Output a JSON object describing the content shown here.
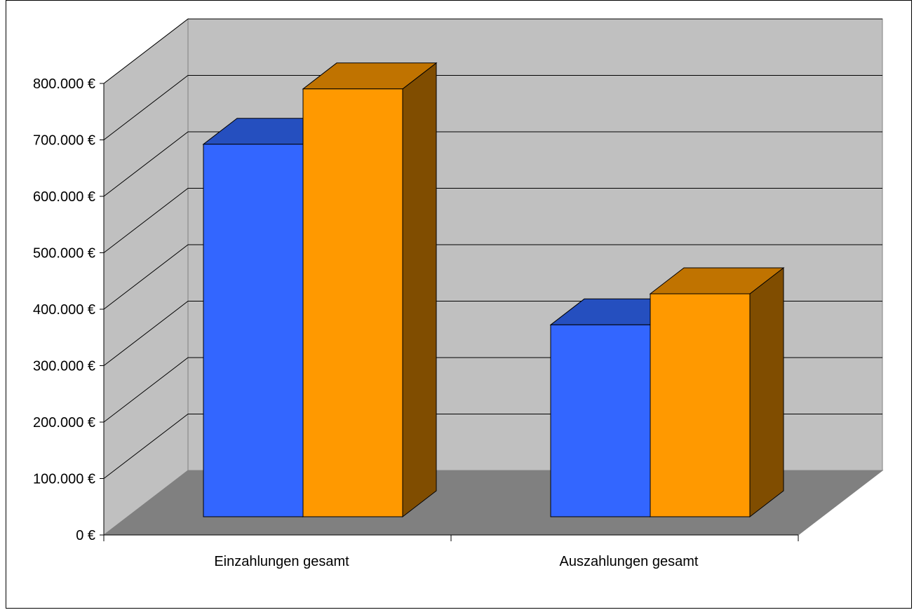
{
  "chart_data": {
    "type": "bar",
    "title": "",
    "xlabel": "",
    "ylabel": "",
    "categories": [
      "Einzahlungen gesamt",
      "Auszahlungen gesamt"
    ],
    "series": [
      {
        "values": [
          660000,
          340000
        ]
      },
      {
        "values": [
          758000,
          395000
        ]
      }
    ],
    "ylim": [
      0,
      800000
    ],
    "yticks": [
      0,
      100000,
      200000,
      300000,
      400000,
      500000,
      600000,
      700000,
      800000
    ],
    "ytick_labels": [
      "0 €",
      "100.000 €",
      "200.000 €",
      "300.000 €",
      "400.000 €",
      "500.000 €",
      "600.000 €",
      "700.000 €",
      "800.000 €"
    ],
    "grid": true,
    "legend": "none",
    "style": "3d-column",
    "colors": {
      "series_front": [
        "#3366ff",
        "#ff9900"
      ],
      "series_top": [
        "#254fbf",
        "#c07300"
      ],
      "series_side": [
        "#1c3a8c",
        "#804d00"
      ],
      "back_wall": "#c0c0c0",
      "side_wall": "#c0c0c0",
      "floor": "#808080"
    }
  }
}
